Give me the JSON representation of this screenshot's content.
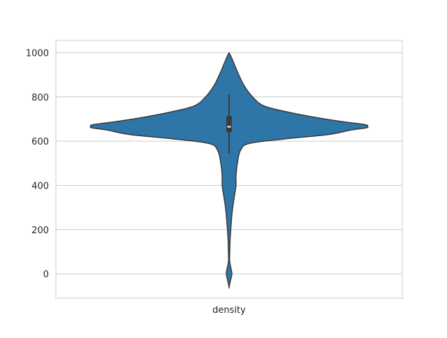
{
  "chart_data": {
    "type": "violin",
    "title": "",
    "xlabel": "",
    "ylabel": "",
    "categories": [
      "density"
    ],
    "ylim": [
      -110,
      1055
    ],
    "yticks": [
      0,
      200,
      400,
      600,
      800,
      1000
    ],
    "grid": true,
    "colors": {
      "violin_fill": "#2e75a8",
      "violin_edge": "#3a3a3a",
      "grid": "#cccccc",
      "axes_edge": "#cccccc",
      "box": "#3b3b3b",
      "median": "#ffffff"
    },
    "summary": {
      "min": -60,
      "max": 1000,
      "q1": 640,
      "median": 665,
      "q3": 715,
      "whisker_low": 545,
      "whisker_high": 810
    },
    "density_profile": [
      {
        "y": -60,
        "half_width": 0.0
      },
      {
        "y": -30,
        "half_width": 0.5
      },
      {
        "y": 0,
        "half_width": 1.0
      },
      {
        "y": 30,
        "half_width": 0.6
      },
      {
        "y": 60,
        "half_width": 0.2
      },
      {
        "y": 100,
        "half_width": 0.25
      },
      {
        "y": 150,
        "half_width": 0.35
      },
      {
        "y": 200,
        "half_width": 0.6
      },
      {
        "y": 250,
        "half_width": 0.9
      },
      {
        "y": 300,
        "half_width": 1.3
      },
      {
        "y": 350,
        "half_width": 1.9
      },
      {
        "y": 400,
        "half_width": 2.5
      },
      {
        "y": 440,
        "half_width": 2.5
      },
      {
        "y": 500,
        "half_width": 3.0
      },
      {
        "y": 560,
        "half_width": 4.2
      },
      {
        "y": 590,
        "half_width": 7.5
      },
      {
        "y": 610,
        "half_width": 20.0
      },
      {
        "y": 630,
        "half_width": 36.0
      },
      {
        "y": 650,
        "half_width": 44.0
      },
      {
        "y": 660,
        "half_width": 49.5
      },
      {
        "y": 667,
        "half_width": 50.0
      },
      {
        "y": 675,
        "half_width": 49.0
      },
      {
        "y": 690,
        "half_width": 40.0
      },
      {
        "y": 710,
        "half_width": 30.0
      },
      {
        "y": 735,
        "half_width": 20.0
      },
      {
        "y": 760,
        "half_width": 12.5
      },
      {
        "y": 800,
        "half_width": 8.5
      },
      {
        "y": 850,
        "half_width": 5.5
      },
      {
        "y": 900,
        "half_width": 3.5
      },
      {
        "y": 950,
        "half_width": 1.8
      },
      {
        "y": 980,
        "half_width": 0.8
      },
      {
        "y": 1000,
        "half_width": 0.0
      }
    ]
  }
}
